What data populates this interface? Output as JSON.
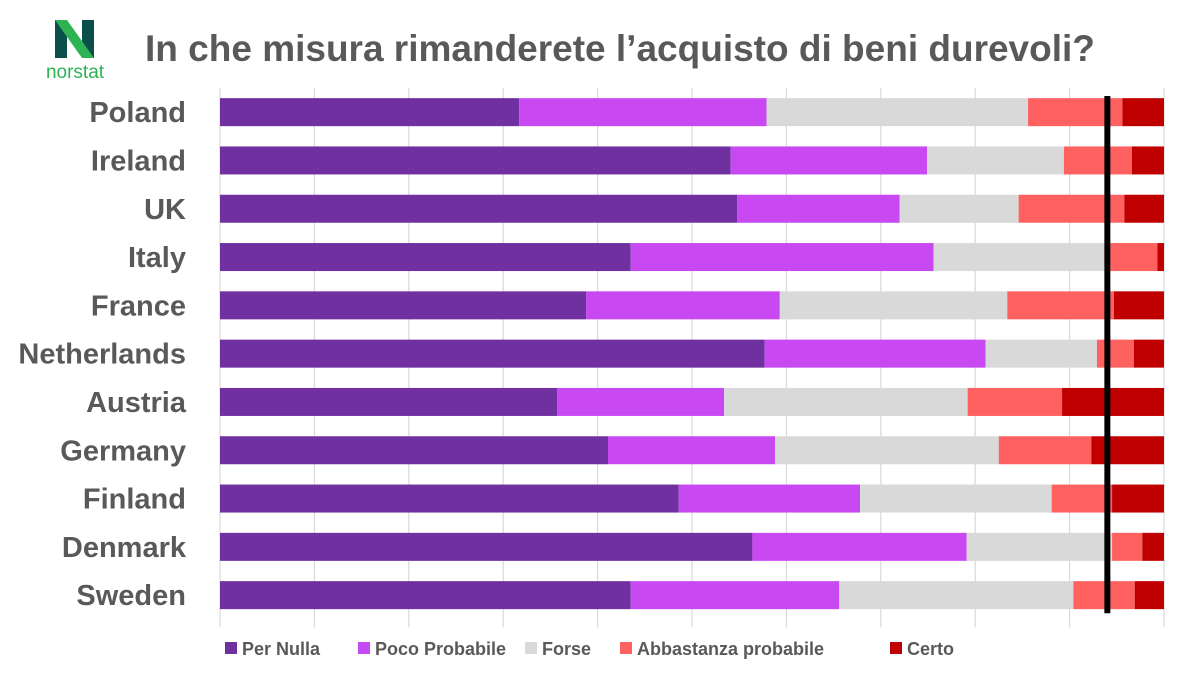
{
  "brand": {
    "name": "norstat",
    "logo_letter": "N",
    "colors": {
      "dark": "#0b4f4a",
      "green": "#2db352"
    }
  },
  "chart_data": {
    "type": "bar",
    "orientation": "horizontal",
    "stacked": true,
    "normalized": true,
    "title": "In che misura rimanderete l’acquisto di beni durevoli?",
    "xlabel": "",
    "ylabel": "",
    "xlim": [
      0,
      100
    ],
    "grid": true,
    "legend_position": "bottom",
    "categories": [
      "Poland",
      "Ireland",
      "UK",
      "Italy",
      "France",
      "Netherlands",
      "Austria",
      "Germany",
      "Finland",
      "Denmark",
      "Sweden"
    ],
    "series": [
      {
        "name": "Per Nulla",
        "color": "#7030a0",
        "values": [
          31.7,
          54.1,
          54.8,
          43.5,
          38.8,
          57.7,
          35.7,
          41.1,
          48.6,
          56.4,
          43.5
        ]
      },
      {
        "name": "Poco Probabile",
        "color": "#c849f2",
        "values": [
          26.2,
          20.8,
          17.2,
          32.1,
          20.5,
          23.4,
          17.7,
          17.7,
          19.2,
          22.7,
          22.1
        ]
      },
      {
        "name": "Forse",
        "color": "#d9d9d9",
        "values": [
          27.7,
          14.5,
          12.6,
          18.7,
          24.1,
          11.8,
          25.8,
          23.7,
          20.3,
          15.4,
          24.8
        ]
      },
      {
        "name": "Abbastanza probabile",
        "color": "#ff6161",
        "values": [
          10.0,
          7.2,
          11.2,
          5.0,
          11.3,
          3.9,
          10.0,
          9.8,
          6.4,
          3.2,
          6.5
        ]
      },
      {
        "name": "Certo",
        "color": "#c00000",
        "values": [
          4.4,
          3.4,
          4.2,
          0.7,
          5.3,
          3.2,
          10.8,
          7.7,
          5.5,
          2.3,
          3.1
        ]
      }
    ],
    "reference_line": {
      "value": 94,
      "color": "#000000"
    }
  }
}
